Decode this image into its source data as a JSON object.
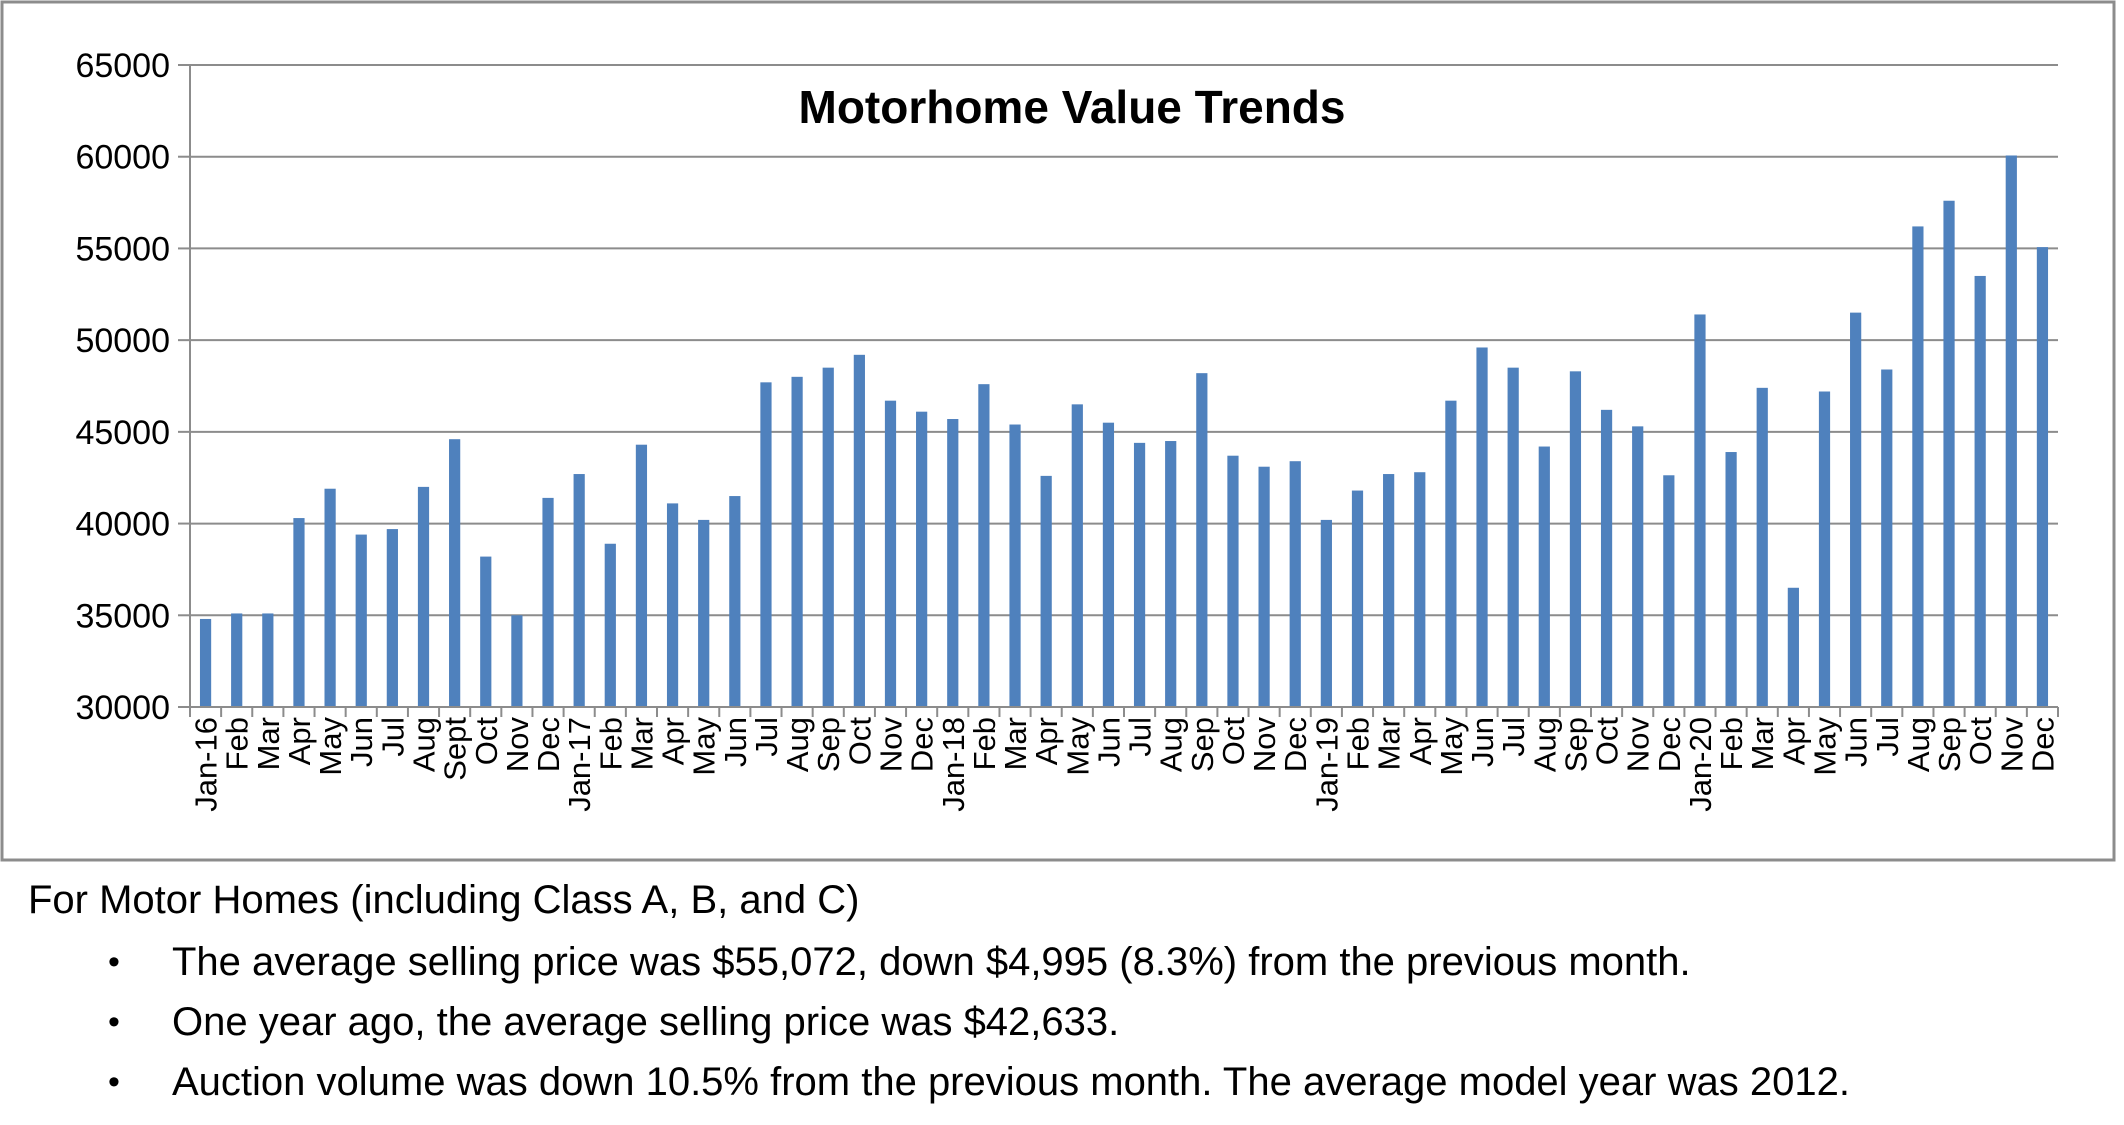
{
  "chart_data": {
    "type": "bar",
    "title": "Motorhome Value Trends",
    "xlabel": "",
    "ylabel": "",
    "ylim": [
      30000,
      65000
    ],
    "yticks": [
      30000,
      35000,
      40000,
      45000,
      50000,
      55000,
      60000,
      65000
    ],
    "grid": true,
    "legend": "none",
    "bar_color": "#4f81bd",
    "categories": [
      "Jan-16",
      "Feb",
      "Mar",
      "Apr",
      "May",
      "Jun",
      "Jul",
      "Aug",
      "Sept",
      "Oct",
      "Nov",
      "Dec",
      "Jan-17",
      "Feb",
      "Mar",
      "Apr",
      "May",
      "Jun",
      "Jul",
      "Aug",
      "Sep",
      "Oct",
      "Nov",
      "Dec",
      "Jan-18",
      "Feb",
      "Mar",
      "Apr",
      "May",
      "Jun",
      "Jul",
      "Aug",
      "Sep",
      "Oct",
      "Nov",
      "Dec",
      "Jan-19",
      "Feb",
      "Mar",
      "Apr",
      "May",
      "Jun",
      "Jul",
      "Aug",
      "Sep",
      "Oct",
      "Nov",
      "Dec",
      "Jan-20",
      "Feb",
      "Mar",
      "Apr",
      "May",
      "Jun",
      "Jul",
      "Aug",
      "Sep",
      "Oct",
      "Nov",
      "Dec"
    ],
    "values": [
      34800,
      35100,
      35100,
      40300,
      41900,
      39400,
      39700,
      42000,
      44600,
      38200,
      35000,
      41400,
      42700,
      38900,
      44300,
      41100,
      40200,
      41500,
      47700,
      48000,
      48500,
      49200,
      46700,
      46100,
      45700,
      47600,
      45400,
      42600,
      46500,
      45500,
      44400,
      44500,
      48200,
      43700,
      43100,
      43400,
      40200,
      41800,
      42700,
      42800,
      46700,
      49600,
      48500,
      44200,
      48300,
      46200,
      45300,
      42633,
      51400,
      43900,
      47400,
      36500,
      47200,
      51500,
      48400,
      56200,
      57600,
      53500,
      60067,
      55072
    ]
  },
  "notes": {
    "heading": "For Motor Homes (including Class A, B, and C)",
    "bullet_symbol": "•",
    "items": [
      "The average selling price was $55,072, down $4,995 (8.3%) from the previous month.",
      "One year ago, the average selling price was $42,633.",
      "Auction volume was down 10.5% from the previous month.  The average model year was 2012."
    ]
  }
}
